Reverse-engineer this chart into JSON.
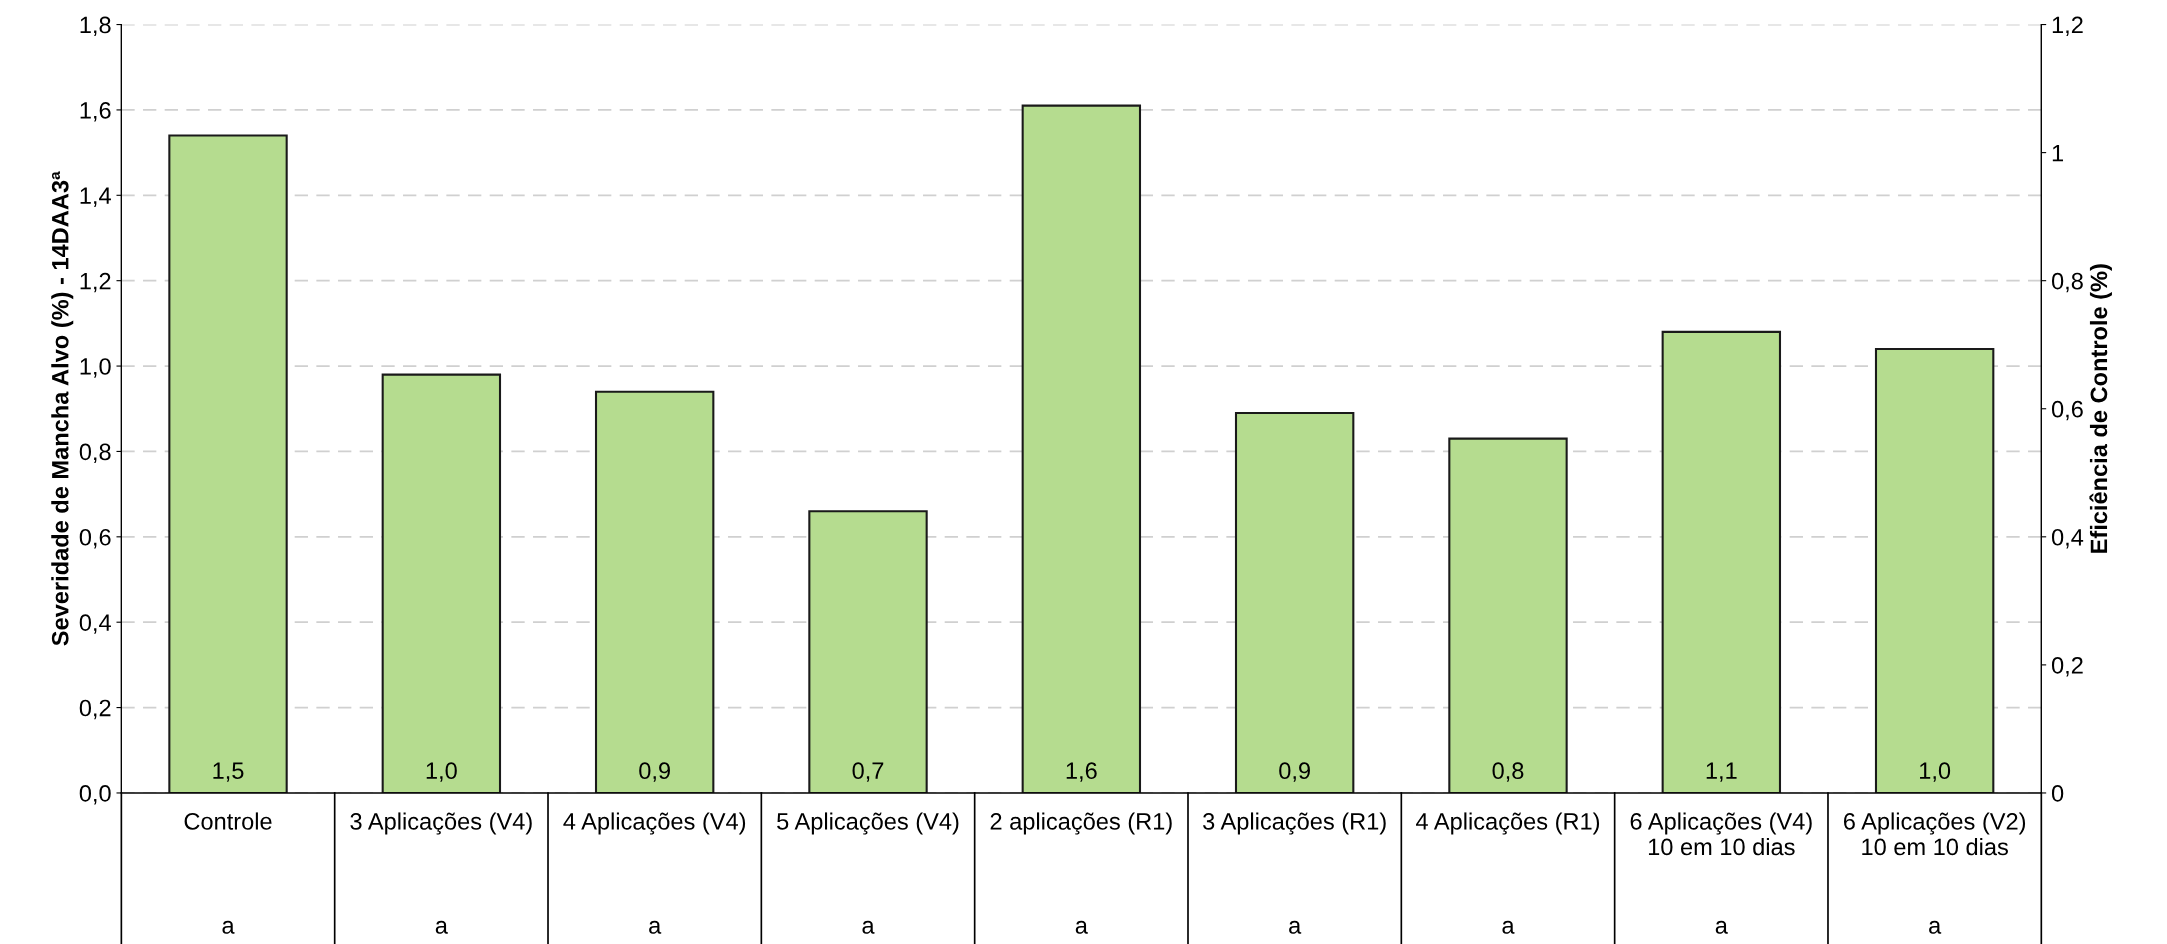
{
  "chart_data": {
    "type": "bar",
    "ylabel": "Severidade de Mancha Alvo (%) - 14DAA3ª",
    "y2label": "Eficiência de Controle (%)",
    "categories": [
      "Controle",
      "3 Aplicações (V4)",
      "4 Aplicações (V4)",
      "5 Aplicações (V4)",
      "2 aplicações (R1)",
      "3 Aplicações (R1)",
      "4 Aplicações (R1)",
      "6 Aplicações (V4)\n10 em 10 dias",
      "6 Aplicações (V2)\n10 em 10 dias"
    ],
    "series": [
      {
        "color": "#b5dc8f",
        "values": [
          1.54,
          0.98,
          0.94,
          0.66,
          1.61,
          0.89,
          0.83,
          1.08,
          1.04
        ],
        "value_labels": [
          "1,5",
          "1,0",
          "0,9",
          "0,7",
          "1,6",
          "0,9",
          "0,8",
          "1,1",
          "1,0"
        ]
      }
    ],
    "ylim": [
      0,
      1.8
    ],
    "yticks": [
      {
        "value": 0,
        "label": "0,0"
      },
      {
        "value": 0.2,
        "label": "0,2"
      },
      {
        "value": 0.4,
        "label": "0,4"
      },
      {
        "value": 0.6,
        "label": "0,6"
      },
      {
        "value": 0.8,
        "label": "0,8"
      },
      {
        "value": 1.0,
        "label": "1,0"
      },
      {
        "value": 1.2,
        "label": "1,2"
      },
      {
        "value": 1.4,
        "label": "1,4"
      },
      {
        "value": 1.6,
        "label": "1,6"
      },
      {
        "value": 1.8,
        "label": "1,8"
      }
    ],
    "y2lim": [
      0,
      1.2
    ],
    "y2ticks": [
      0,
      {
        "value": 0.2,
        "label": "0,2"
      },
      {
        "value": 0.4,
        "label": "0,4"
      },
      {
        "value": 0.6,
        "label": "0,6"
      },
      {
        "value": 0.8,
        "label": "0,8"
      },
      1,
      {
        "value": 1.2,
        "label": "1,2"
      }
    ],
    "grid": "y",
    "annotations": [
      "a",
      "a",
      "a",
      "a",
      "a",
      "a",
      "a",
      "a",
      "a"
    ]
  }
}
